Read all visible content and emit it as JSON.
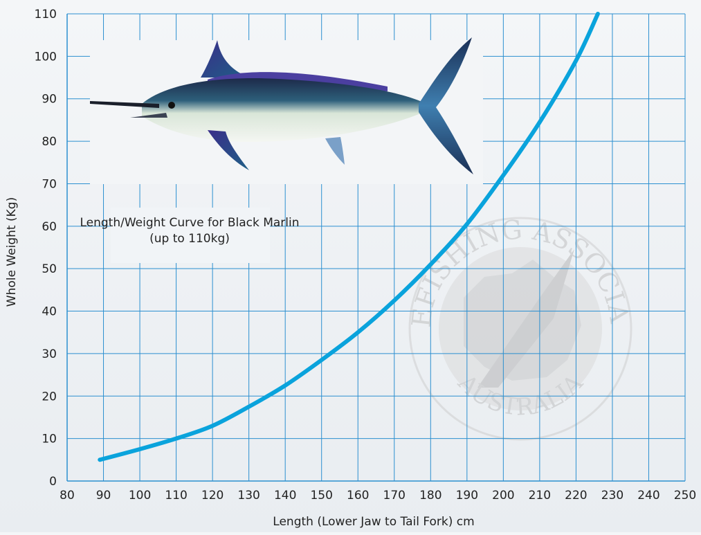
{
  "chart_data": {
    "type": "line",
    "title": "",
    "annotation_lines": [
      "Length/Weight Curve for Black Marlin",
      "(up to 110kg)"
    ],
    "xlabel": "Length (Lower Jaw to Tail Fork) cm",
    "ylabel": "Whole Weight (Kg)",
    "xlim": [
      80,
      250
    ],
    "ylim": [
      0,
      110
    ],
    "x_ticks": [
      80,
      90,
      100,
      110,
      120,
      130,
      140,
      150,
      160,
      170,
      180,
      190,
      200,
      210,
      220,
      230,
      240,
      250
    ],
    "y_ticks": [
      0,
      10,
      20,
      30,
      40,
      50,
      60,
      70,
      80,
      90,
      100,
      110
    ],
    "grid": true,
    "series": [
      {
        "color": "#0aa3dc",
        "x": [
          89,
          100,
          110,
          120,
          130,
          140,
          150,
          160,
          170,
          180,
          190,
          200,
          210,
          220,
          226
        ],
        "y": [
          5,
          7.5,
          10,
          13,
          17.5,
          22.5,
          28.5,
          35,
          42.5,
          51,
          60.5,
          72,
          84.5,
          99,
          110
        ]
      }
    ]
  },
  "logo_text": {
    "top": "GAMEFISHING ASSOCIATION",
    "bottom": "AUSTRALIA"
  },
  "colors": {
    "grid": "#2b8fd0",
    "curve": "#0aa3dc",
    "axis": "#2b8fd0"
  }
}
